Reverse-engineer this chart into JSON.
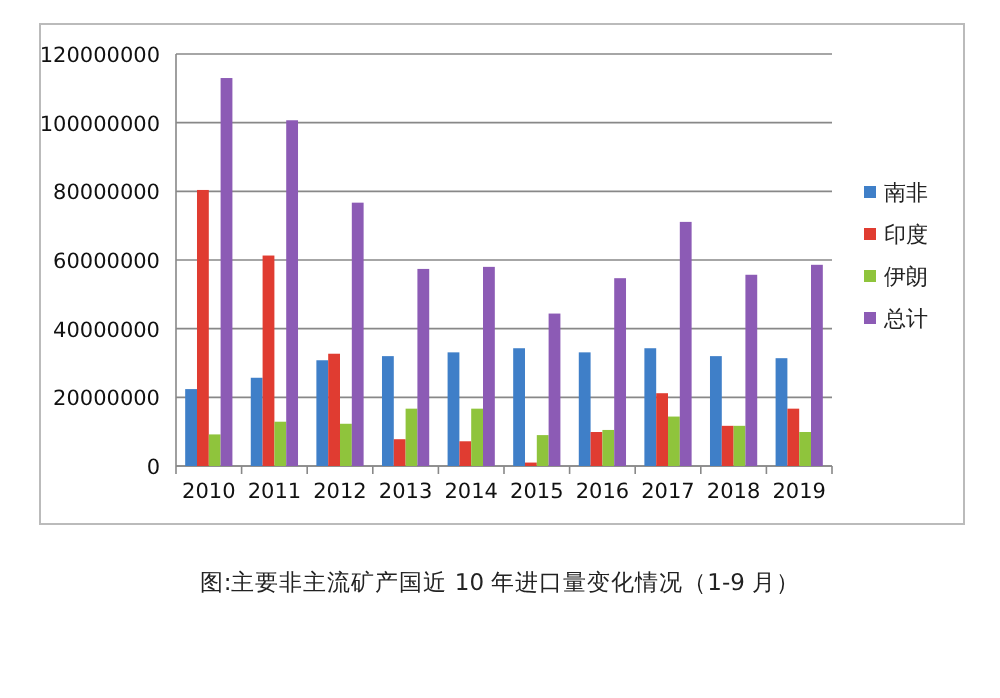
{
  "chart_data": {
    "type": "bar",
    "title": "图:主要非主流矿产国近 10 年进口量变化情况（1-9 月）",
    "categories": [
      "2010",
      "2011",
      "2012",
      "2013",
      "2014",
      "2015",
      "2016",
      "2017",
      "2018",
      "2019"
    ],
    "series": [
      {
        "name": "南非",
        "color": "#3f7fc8",
        "values": [
          22400000,
          25700000,
          30800000,
          32000000,
          33100000,
          34300000,
          33100000,
          34300000,
          32000000,
          31400000
        ]
      },
      {
        "name": "印度",
        "color": "#e03c31",
        "values": [
          80400000,
          61300000,
          32700000,
          7800000,
          7200000,
          1000000,
          9900000,
          21200000,
          11700000,
          16700000
        ]
      },
      {
        "name": "伊朗",
        "color": "#8fc43c",
        "values": [
          9200000,
          12900000,
          12300000,
          16700000,
          16700000,
          9000000,
          10500000,
          14400000,
          11700000,
          9900000
        ]
      },
      {
        "name": "总计",
        "color": "#8c5bb5",
        "values": [
          113000000,
          100700000,
          76700000,
          57400000,
          58000000,
          44400000,
          54700000,
          71100000,
          55700000,
          58600000
        ]
      }
    ],
    "ylim": [
      0,
      120000000
    ],
    "yticks": [
      0,
      20000000,
      40000000,
      60000000,
      80000000,
      100000000,
      120000000
    ],
    "grid": "y",
    "legend": "right"
  }
}
